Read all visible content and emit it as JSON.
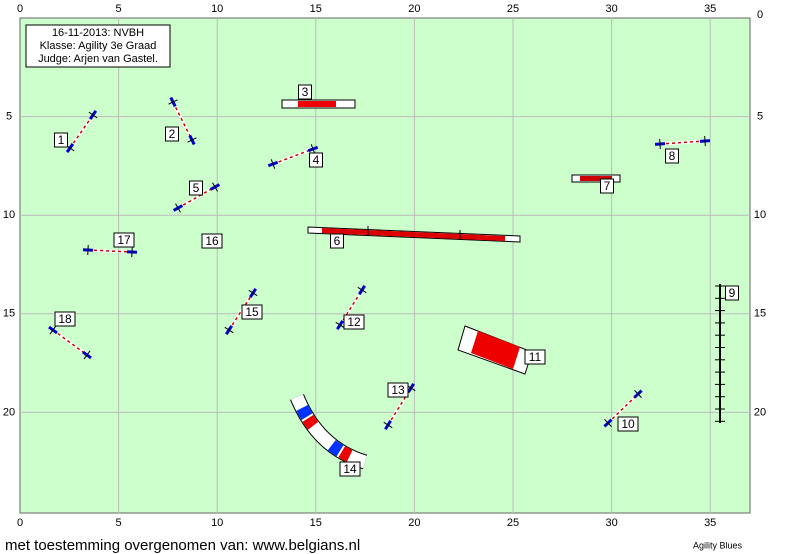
{
  "info": [
    "16-11-2013: NVBH",
    "Klasse: Agility 3e Graad",
    "Judge: Arjen van Gastel."
  ],
  "axis": {
    "xticks": [
      0,
      5,
      10,
      15,
      20,
      25,
      30,
      35
    ],
    "yticks": [
      0,
      5,
      10,
      15,
      20
    ]
  },
  "obstacles": [
    "1",
    "2",
    "3",
    "4",
    "5",
    "6",
    "7",
    "8",
    "9",
    "10",
    "11",
    "12",
    "13",
    "14",
    "15",
    "16",
    "17",
    "18"
  ],
  "footer": {
    "left": "met toestemming overgenomen van: www.belgians.nl",
    "right": "Agility Blues"
  }
}
